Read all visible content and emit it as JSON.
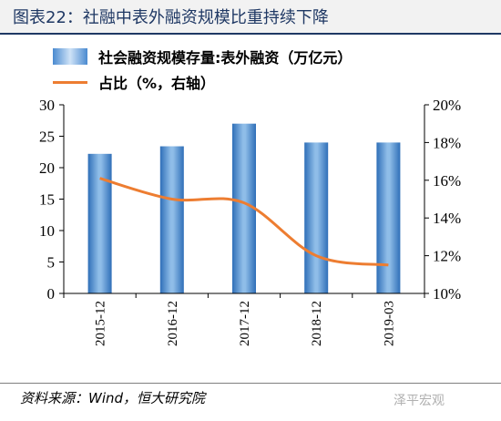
{
  "header": {
    "title": "图表22：社融中表外融资规模比重持续下降"
  },
  "legend": {
    "bar_label": "社会融资规模存量:表外融资（万亿元）",
    "line_label": "占比（%，右轴）"
  },
  "footer": {
    "source": "资料来源：Wind，恒大研究院",
    "watermark": "泽平宏观"
  },
  "colors": {
    "bar": "#3a7cc9",
    "line": "#ed7d31",
    "title_bg": "#f2f2f2",
    "title_text": "#1f3864"
  },
  "chart_data": {
    "type": "bar",
    "categories": [
      "2015-12",
      "2016-12",
      "2017-12",
      "2018-12",
      "2019-03"
    ],
    "series": [
      {
        "name": "社会融资规模存量:表外融资（万亿元）",
        "type": "bar",
        "axis": "left",
        "values": [
          22.2,
          23.4,
          27.0,
          24.0,
          24.0
        ]
      },
      {
        "name": "占比（%，右轴）",
        "type": "line",
        "axis": "right",
        "values": [
          16.1,
          15.0,
          14.8,
          12.0,
          11.5
        ]
      }
    ],
    "ylim_left": [
      0,
      30
    ],
    "yticks_left": [
      "0",
      "5",
      "10",
      "15",
      "20",
      "25",
      "30"
    ],
    "ylim_right": [
      10,
      20
    ],
    "yticks_right": [
      "10%",
      "12%",
      "14%",
      "16%",
      "18%",
      "20%"
    ],
    "grid": false,
    "legend_position": "top"
  }
}
